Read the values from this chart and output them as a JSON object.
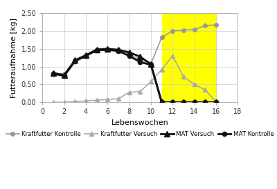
{
  "title": "",
  "xlabel": "Lebenswochen",
  "ylabel": "Futteraufnahme [kg]",
  "xlim": [
    0,
    18
  ],
  "ylim": [
    0,
    2.5
  ],
  "xticks": [
    0,
    2,
    4,
    6,
    8,
    10,
    12,
    14,
    16,
    18
  ],
  "yticks": [
    0.0,
    0.5,
    1.0,
    1.5,
    2.0,
    2.5
  ],
  "ytick_labels": [
    "0,00",
    "0,50",
    "1,00",
    "1,50",
    "2,00",
    "2,50"
  ],
  "yellow_zone": [
    11,
    16
  ],
  "kraftfutter_kontrolle_x": [
    1,
    2,
    3,
    4,
    5,
    6,
    7,
    8,
    9,
    10,
    11,
    12,
    13,
    14,
    15,
    16
  ],
  "kraftfutter_kontrolle_y": [
    0.82,
    0.8,
    1.18,
    1.3,
    1.47,
    1.5,
    1.48,
    1.35,
    1.2,
    1.08,
    1.82,
    2.0,
    2.02,
    2.04,
    2.15,
    2.17
  ],
  "kraftfutter_versuch_x": [
    1,
    2,
    3,
    4,
    5,
    6,
    7,
    8,
    9,
    10,
    11,
    12,
    13,
    14,
    15,
    16
  ],
  "kraftfutter_versuch_y": [
    0.0,
    0.0,
    0.02,
    0.04,
    0.06,
    0.08,
    0.1,
    0.28,
    0.3,
    0.58,
    0.92,
    1.3,
    0.72,
    0.5,
    0.35,
    0.02
  ],
  "mat_versuch_x": [
    1,
    2,
    3,
    4,
    5,
    6,
    7,
    8,
    9,
    10,
    11,
    12,
    13,
    14,
    15,
    16
  ],
  "mat_versuch_y": [
    0.82,
    0.76,
    1.18,
    1.32,
    1.48,
    1.5,
    1.47,
    1.4,
    1.28,
    1.07,
    0.0,
    0.0,
    0.0,
    0.0,
    0.0,
    0.0
  ],
  "mat_kontrolle_x": [
    1,
    2,
    3,
    4,
    5,
    6,
    7,
    8,
    9,
    10,
    11,
    12,
    13,
    14,
    15,
    16
  ],
  "mat_kontrolle_y": [
    0.8,
    0.74,
    1.15,
    1.3,
    1.46,
    1.47,
    1.44,
    1.3,
    1.13,
    1.05,
    0.0,
    0.0,
    0.0,
    0.0,
    0.0,
    0.0
  ],
  "color_kk": "#999999",
  "color_kv": "#aaaaaa",
  "color_mv": "#111111",
  "color_mk": "#111111",
  "yellow_color": "#ffff00",
  "legend_labels": [
    "Kraftfutter Kontrolle",
    "Kraftfutter Versuch",
    "MAT Versuch",
    "MAT Kontrolle"
  ],
  "background_color": "#ffffff"
}
